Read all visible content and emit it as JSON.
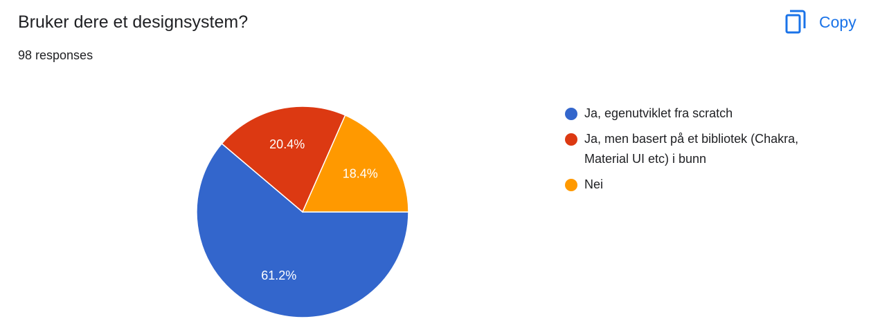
{
  "header": {
    "title": "Bruker dere et designsystem?",
    "subtitle": "98 responses",
    "copy_button": "Copy"
  },
  "chart_data": {
    "type": "pie",
    "categories": [
      "Ja, egenutviklet fra scratch",
      "Ja, men basert på et bibliotek (Chakra, Material UI etc) i bunn",
      "Nei"
    ],
    "values": [
      61.2,
      20.4,
      18.4
    ],
    "value_labels": [
      "61.2%",
      "20.4%",
      "18.4%"
    ],
    "colors": [
      "#3366cc",
      "#dc3912",
      "#ff9900"
    ]
  }
}
